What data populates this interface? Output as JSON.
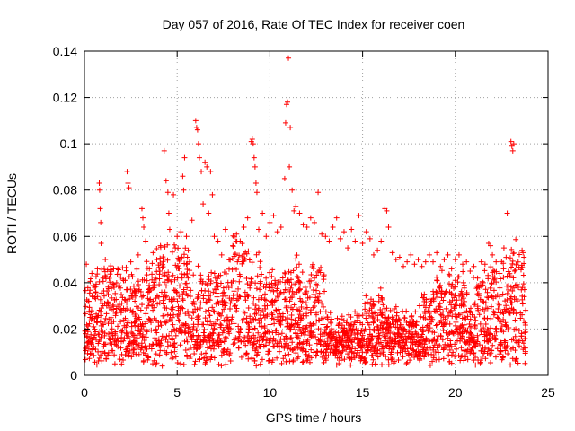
{
  "chart_data": {
    "type": "scatter",
    "title": "Day 057 of 2016, Rate Of TEC Index for receiver coen",
    "xlabel": "GPS time / hours",
    "ylabel": "ROTI / TECUs",
    "xlim": [
      0,
      25
    ],
    "ylim": [
      0,
      0.14
    ],
    "xticks": [
      0,
      5,
      10,
      15,
      20,
      25
    ],
    "yticks": [
      0,
      0.02,
      0.04,
      0.06,
      0.08,
      0.1,
      0.12,
      0.14
    ],
    "xtick_labels": [
      "0",
      "5",
      "10",
      "15",
      "20",
      "25"
    ],
    "ytick_labels": [
      "0",
      "0.02",
      "0.04",
      "0.06",
      "0.08",
      "0.1",
      "0.12",
      "0.14"
    ],
    "grid": true,
    "marker": "+",
    "color": "#ff0000",
    "series": [
      {
        "name": "ROTI",
        "points": [
          [
            0.05,
            0.018
          ],
          [
            0.1,
            0.048
          ],
          [
            0.2,
            0.032
          ],
          [
            0.3,
            0.025
          ],
          [
            0.4,
            0.044
          ],
          [
            0.5,
            0.021
          ],
          [
            0.6,
            0.036
          ],
          [
            0.7,
            0.046
          ],
          [
            0.8,
            0.083
          ],
          [
            0.82,
            0.08
          ],
          [
            0.85,
            0.072
          ],
          [
            0.88,
            0.066
          ],
          [
            0.9,
            0.057
          ],
          [
            1.0,
            0.042
          ],
          [
            1.2,
            0.03
          ],
          [
            1.4,
            0.045
          ],
          [
            1.6,
            0.038
          ],
          [
            1.8,
            0.046
          ],
          [
            2.0,
            0.028
          ],
          [
            2.2,
            0.041
          ],
          [
            2.3,
            0.088
          ],
          [
            2.35,
            0.083
          ],
          [
            2.4,
            0.081
          ],
          [
            2.5,
            0.049
          ],
          [
            2.7,
            0.036
          ],
          [
            2.9,
            0.052
          ],
          [
            3.1,
            0.072
          ],
          [
            3.15,
            0.068
          ],
          [
            3.2,
            0.064
          ],
          [
            3.3,
            0.058
          ],
          [
            3.5,
            0.046
          ],
          [
            3.7,
            0.053
          ],
          [
            3.9,
            0.05
          ],
          [
            4.1,
            0.056
          ],
          [
            4.3,
            0.097
          ],
          [
            4.4,
            0.084
          ],
          [
            4.5,
            0.079
          ],
          [
            4.55,
            0.07
          ],
          [
            4.6,
            0.063
          ],
          [
            4.8,
            0.078
          ],
          [
            4.9,
            0.055
          ],
          [
            5.0,
            0.06
          ],
          [
            5.1,
            0.05
          ],
          [
            5.2,
            0.062
          ],
          [
            5.3,
            0.086
          ],
          [
            5.35,
            0.08
          ],
          [
            5.4,
            0.094
          ],
          [
            5.5,
            0.06
          ],
          [
            5.6,
            0.054
          ],
          [
            5.8,
            0.067
          ],
          [
            6.0,
            0.11
          ],
          [
            6.05,
            0.107
          ],
          [
            6.1,
            0.106
          ],
          [
            6.15,
            0.1
          ],
          [
            6.2,
            0.094
          ],
          [
            6.3,
            0.088
          ],
          [
            6.4,
            0.074
          ],
          [
            6.5,
            0.092
          ],
          [
            6.6,
            0.09
          ],
          [
            6.7,
            0.07
          ],
          [
            6.8,
            0.088
          ],
          [
            6.9,
            0.078
          ],
          [
            7.0,
            0.06
          ],
          [
            7.2,
            0.058
          ],
          [
            7.4,
            0.052
          ],
          [
            7.6,
            0.063
          ],
          [
            7.8,
            0.05
          ],
          [
            8.0,
            0.056
          ],
          [
            8.2,
            0.061
          ],
          [
            8.4,
            0.058
          ],
          [
            8.6,
            0.064
          ],
          [
            8.8,
            0.068
          ],
          [
            9.0,
            0.101
          ],
          [
            9.05,
            0.102
          ],
          [
            9.1,
            0.1
          ],
          [
            9.15,
            0.094
          ],
          [
            9.2,
            0.09
          ],
          [
            9.25,
            0.083
          ],
          [
            9.3,
            0.079
          ],
          [
            9.4,
            0.063
          ],
          [
            9.6,
            0.07
          ],
          [
            9.8,
            0.06
          ],
          [
            10.0,
            0.066
          ],
          [
            10.2,
            0.069
          ],
          [
            10.4,
            0.062
          ],
          [
            10.6,
            0.064
          ],
          [
            10.8,
            0.085
          ],
          [
            10.85,
            0.109
          ],
          [
            10.9,
            0.117
          ],
          [
            10.95,
            0.118
          ],
          [
            11.0,
            0.137
          ],
          [
            11.05,
            0.09
          ],
          [
            11.1,
            0.107
          ],
          [
            11.2,
            0.08
          ],
          [
            11.3,
            0.071
          ],
          [
            11.4,
            0.073
          ],
          [
            11.6,
            0.07
          ],
          [
            11.8,
            0.065
          ],
          [
            12.0,
            0.064
          ],
          [
            12.2,
            0.068
          ],
          [
            12.4,
            0.066
          ],
          [
            12.6,
            0.079
          ],
          [
            12.8,
            0.061
          ],
          [
            13.0,
            0.06
          ],
          [
            13.2,
            0.058
          ],
          [
            13.4,
            0.064
          ],
          [
            13.6,
            0.068
          ],
          [
            13.8,
            0.059
          ],
          [
            14.0,
            0.062
          ],
          [
            14.2,
            0.055
          ],
          [
            14.4,
            0.063
          ],
          [
            14.6,
            0.058
          ],
          [
            14.8,
            0.069
          ],
          [
            15.0,
            0.057
          ],
          [
            15.2,
            0.062
          ],
          [
            15.4,
            0.059
          ],
          [
            15.6,
            0.052
          ],
          [
            15.8,
            0.054
          ],
          [
            16.0,
            0.058
          ],
          [
            16.2,
            0.072
          ],
          [
            16.3,
            0.071
          ],
          [
            16.4,
            0.064
          ],
          [
            16.6,
            0.053
          ],
          [
            16.8,
            0.05
          ],
          [
            17.0,
            0.051
          ],
          [
            17.2,
            0.047
          ],
          [
            17.4,
            0.049
          ],
          [
            17.6,
            0.052
          ],
          [
            17.8,
            0.048
          ],
          [
            18.0,
            0.05
          ],
          [
            18.2,
            0.047
          ],
          [
            18.4,
            0.049
          ],
          [
            18.6,
            0.052
          ],
          [
            18.8,
            0.049
          ],
          [
            19.0,
            0.053
          ],
          [
            19.2,
            0.047
          ],
          [
            19.4,
            0.05
          ],
          [
            19.6,
            0.052
          ],
          [
            19.8,
            0.046
          ],
          [
            20.0,
            0.05
          ],
          [
            20.2,
            0.052
          ],
          [
            20.4,
            0.048
          ],
          [
            20.6,
            0.049
          ],
          [
            20.8,
            0.045
          ],
          [
            21.0,
            0.047
          ],
          [
            21.2,
            0.042
          ],
          [
            21.4,
            0.049
          ],
          [
            21.6,
            0.048
          ],
          [
            21.8,
            0.057
          ],
          [
            21.9,
            0.056
          ],
          [
            22.0,
            0.052
          ],
          [
            22.2,
            0.049
          ],
          [
            22.4,
            0.044
          ],
          [
            22.6,
            0.046
          ],
          [
            22.8,
            0.07
          ],
          [
            23.0,
            0.101
          ],
          [
            23.05,
            0.099
          ],
          [
            23.1,
            0.097
          ],
          [
            23.15,
            0.1
          ],
          [
            23.2,
            0.045
          ],
          [
            23.4,
            0.038
          ],
          [
            23.6,
            0.054
          ],
          [
            23.65,
            0.053
          ],
          [
            23.7,
            0.051
          ]
        ]
      }
    ]
  }
}
